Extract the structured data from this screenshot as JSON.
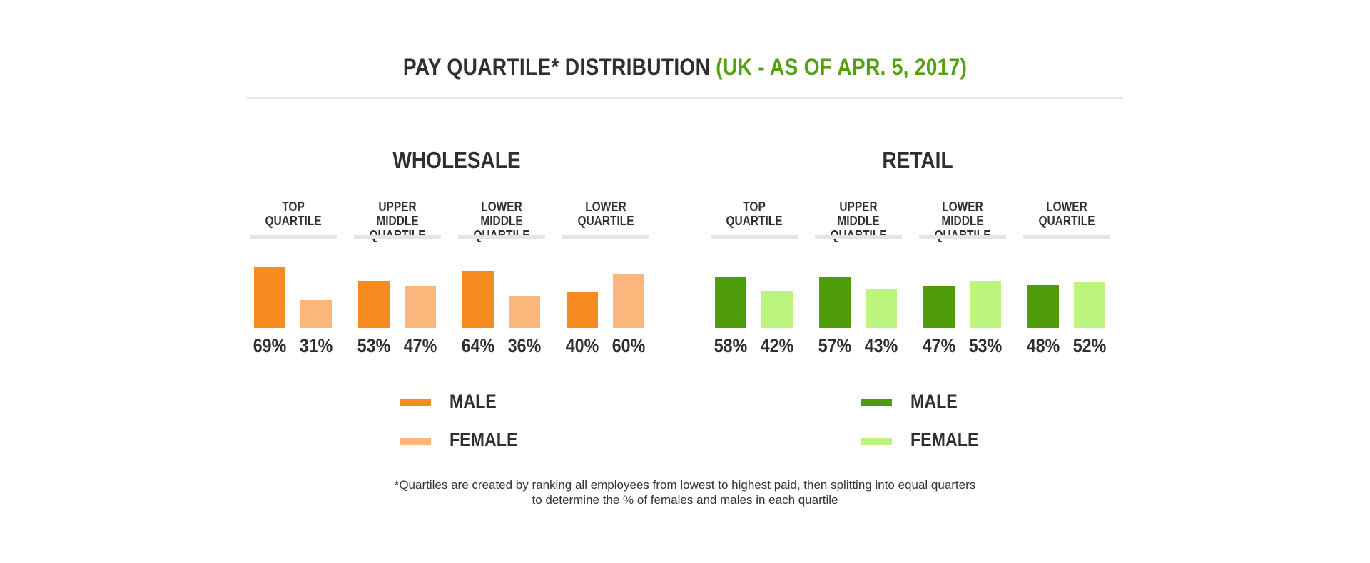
{
  "title": {
    "main": "PAY QUARTILE* DISTRIBUTION",
    "accent": "(UK - AS OF APR. 5, 2017)",
    "accent_color": "#52a010"
  },
  "chart_data": [
    {
      "type": "bar",
      "title": "WHOLESALE",
      "categories": [
        "TOP QUARTILE",
        "UPPER MIDDLE QUARTILE",
        "LOWER MIDDLE QUARTILE",
        "LOWER QUARTILE"
      ],
      "category_lines": [
        [
          "TOP",
          "QUARTILE"
        ],
        [
          "UPPER MIDDLE",
          "QUARTILE"
        ],
        [
          "LOWER MIDDLE",
          "QUARTILE"
        ],
        [
          "LOWER",
          "QUARTILE"
        ]
      ],
      "series": [
        {
          "name": "MALE",
          "color": "#f68c1f",
          "values": [
            69,
            53,
            64,
            40
          ],
          "labels": [
            "69%",
            "53%",
            "64%",
            "40%"
          ]
        },
        {
          "name": "FEMALE",
          "color": "#fbb67b",
          "values": [
            31,
            47,
            36,
            60
          ],
          "labels": [
            "31%",
            "47%",
            "36%",
            "60%"
          ]
        }
      ],
      "unit": "%",
      "legend": "bottom"
    },
    {
      "type": "bar",
      "title": "RETAIL",
      "categories": [
        "TOP QUARTILE",
        "UPPER MIDDLE QUARTILE",
        "LOWER MIDDLE QUARTILE",
        "LOWER QUARTILE"
      ],
      "category_lines": [
        [
          "TOP",
          "QUARTILE"
        ],
        [
          "UPPER MIDDLE",
          "QUARTILE"
        ],
        [
          "LOWER MIDDLE",
          "QUARTILE"
        ],
        [
          "LOWER",
          "QUARTILE"
        ]
      ],
      "series": [
        {
          "name": "MALE",
          "color": "#4f9c0a",
          "values": [
            58,
            57,
            47,
            48
          ],
          "labels": [
            "58%",
            "57%",
            "47%",
            "48%"
          ]
        },
        {
          "name": "FEMALE",
          "color": "#bbf57f",
          "values": [
            42,
            43,
            53,
            52
          ],
          "labels": [
            "42%",
            "43%",
            "53%",
            "52%"
          ]
        }
      ],
      "unit": "%",
      "legend": "bottom"
    }
  ],
  "footnote": {
    "line1": "*Quartiles are created by ranking all employees from lowest to highest paid, then splitting into equal quarters",
    "line2": "to determine the % of females and males in each quartile"
  }
}
